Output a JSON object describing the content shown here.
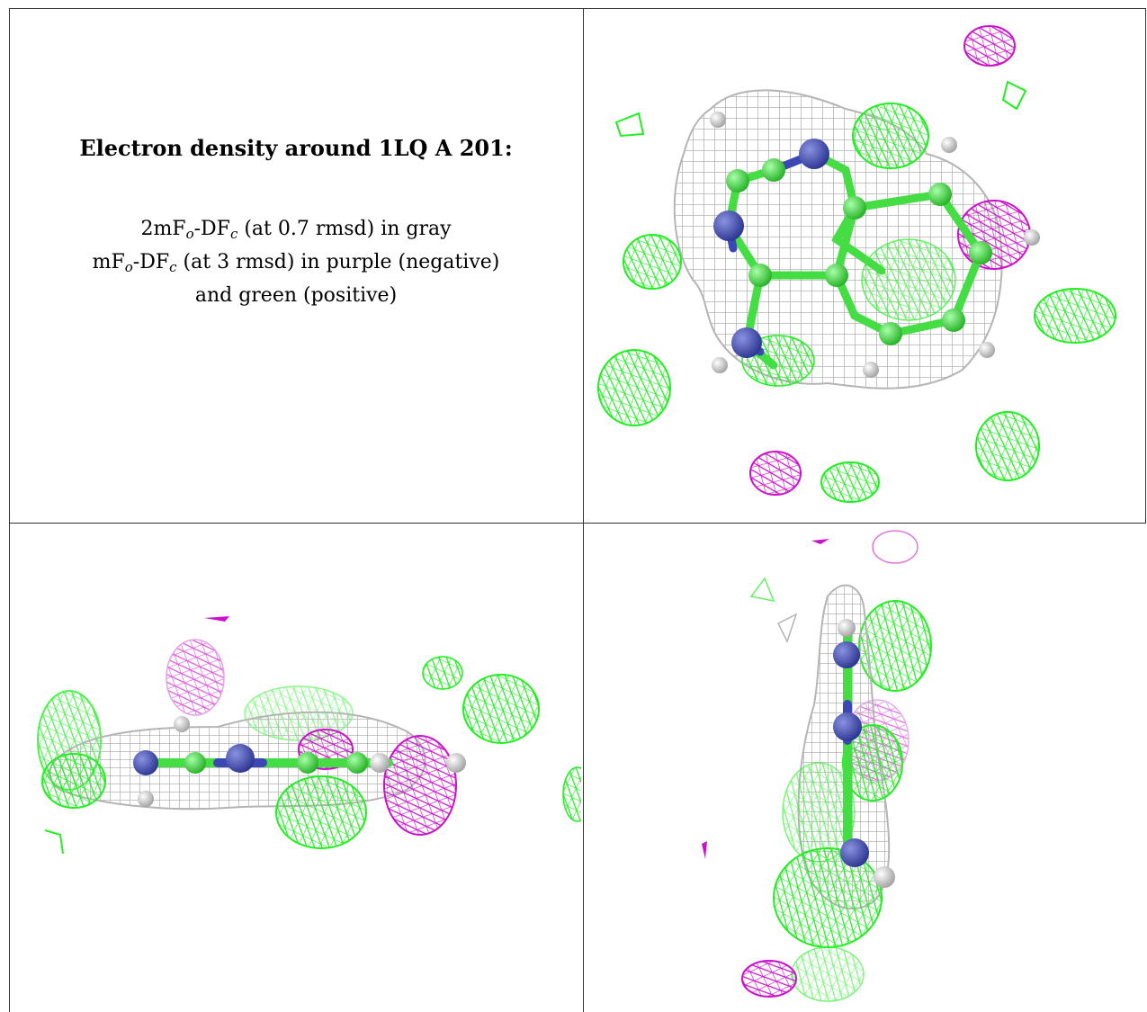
{
  "caption": {
    "title": "Electron density around 1LQ A 201:",
    "line1": {
      "pre": "2mF",
      "sub1": "o",
      "mid": "-DF",
      "sub2": "c",
      "post": " (at 0.7 rmsd) in gray"
    },
    "line2": {
      "pre": "mF",
      "sub1": "o",
      "mid": "-DF",
      "sub2": "c",
      "post": " (at 3 rmsd) in purple (negative)"
    },
    "line3": "and green (positive)"
  },
  "colors": {
    "gray_mesh": "#b4b4b4",
    "positive": "#22ee22",
    "negative": "#cc11cc",
    "nitrogen": "#3b47b5",
    "carbon": "#44dd44",
    "hydrogen": "#e8e8e8",
    "border": "#333333"
  },
  "panels": [
    {
      "id": "top-right",
      "view": "face-on"
    },
    {
      "id": "bottom-left",
      "view": "edge-on horizontal"
    },
    {
      "id": "bottom-right",
      "view": "edge-on vertical"
    }
  ]
}
